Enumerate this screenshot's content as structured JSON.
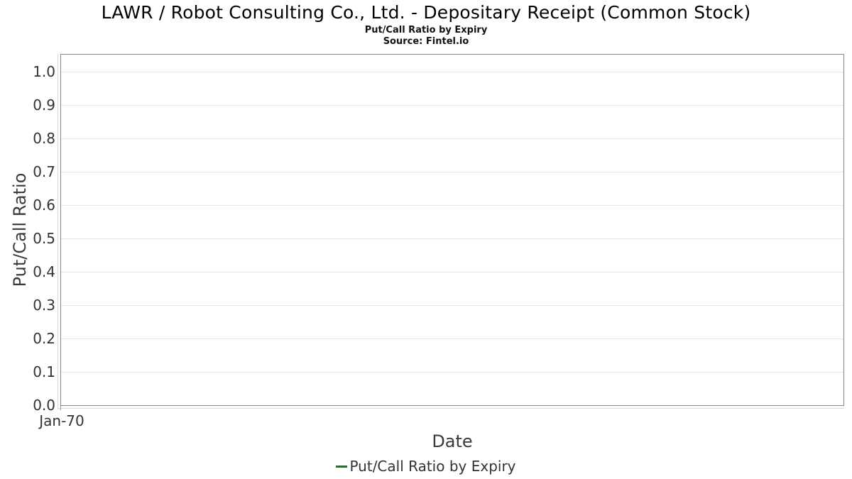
{
  "chart_data": {
    "type": "line",
    "title": "LAWR / Robot Consulting Co., Ltd. - Depositary Receipt (Common Stock)",
    "subtitle": "Put/Call Ratio by Expiry",
    "source": "Source: Fintel.io",
    "xlabel": "Date",
    "ylabel": "Put/Call Ratio",
    "x_ticks": [
      "Jan-70"
    ],
    "y_ticks": [
      "1.0",
      "0.9",
      "0.8",
      "0.7",
      "0.6",
      "0.5",
      "0.4",
      "0.3",
      "0.2",
      "0.1",
      "0.0"
    ],
    "ylim": [
      0.0,
      1.055
    ],
    "grid": true,
    "legend_position": "bottom",
    "series": [
      {
        "name": "Put/Call Ratio by Expiry",
        "color": "#2c6b35",
        "x": [],
        "values": []
      }
    ],
    "colors": {
      "plot_border": "#848484",
      "gridline": "#e5e5e5",
      "axis_line": "#d9d9d9",
      "tick_label": "#333333",
      "axis_title": "#3a3a3a",
      "title_text": "#000000",
      "legend_text": "#333333",
      "background": "#ffffff"
    }
  }
}
